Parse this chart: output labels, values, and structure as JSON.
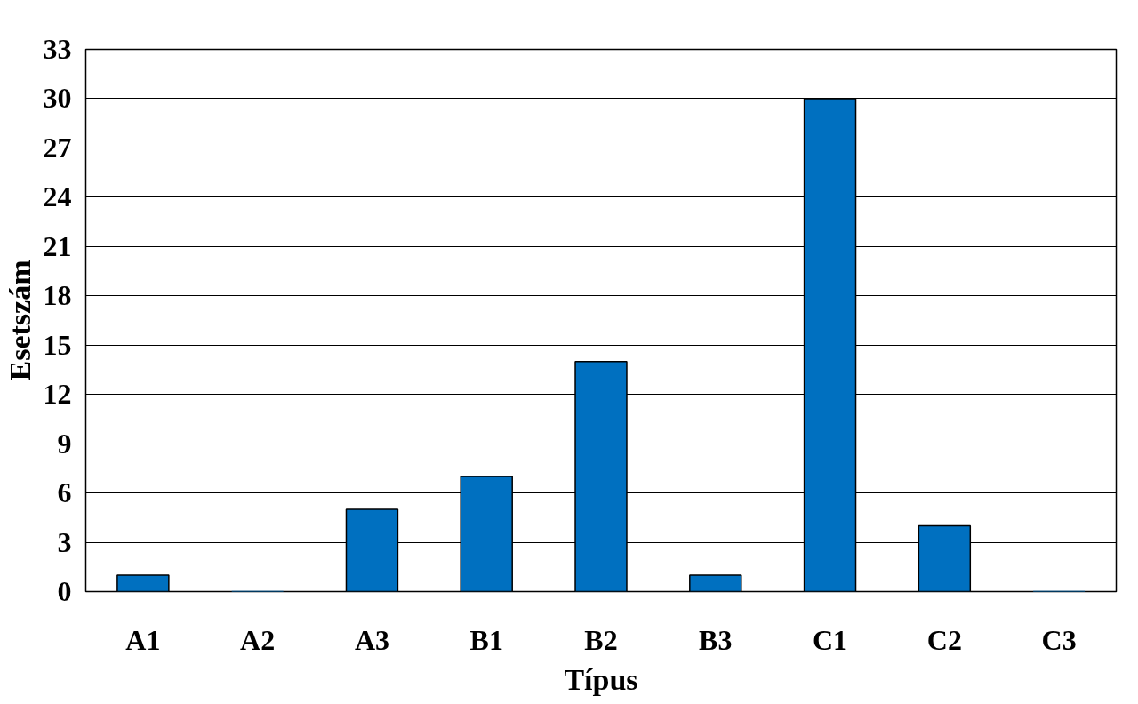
{
  "chart_data": {
    "type": "bar",
    "xlabel": "Típus",
    "ylabel": "Esetszám",
    "categories": [
      "A1",
      "A2",
      "A3",
      "B1",
      "B2",
      "B3",
      "C1",
      "C2",
      "C3"
    ],
    "values": [
      1,
      0,
      5,
      7,
      14,
      1,
      30,
      4,
      0
    ],
    "color": "#0070c0",
    "ylim": [
      0,
      33
    ],
    "yticks": [
      0,
      3,
      6,
      9,
      12,
      15,
      18,
      21,
      24,
      27,
      30,
      33
    ],
    "grid": "y"
  }
}
